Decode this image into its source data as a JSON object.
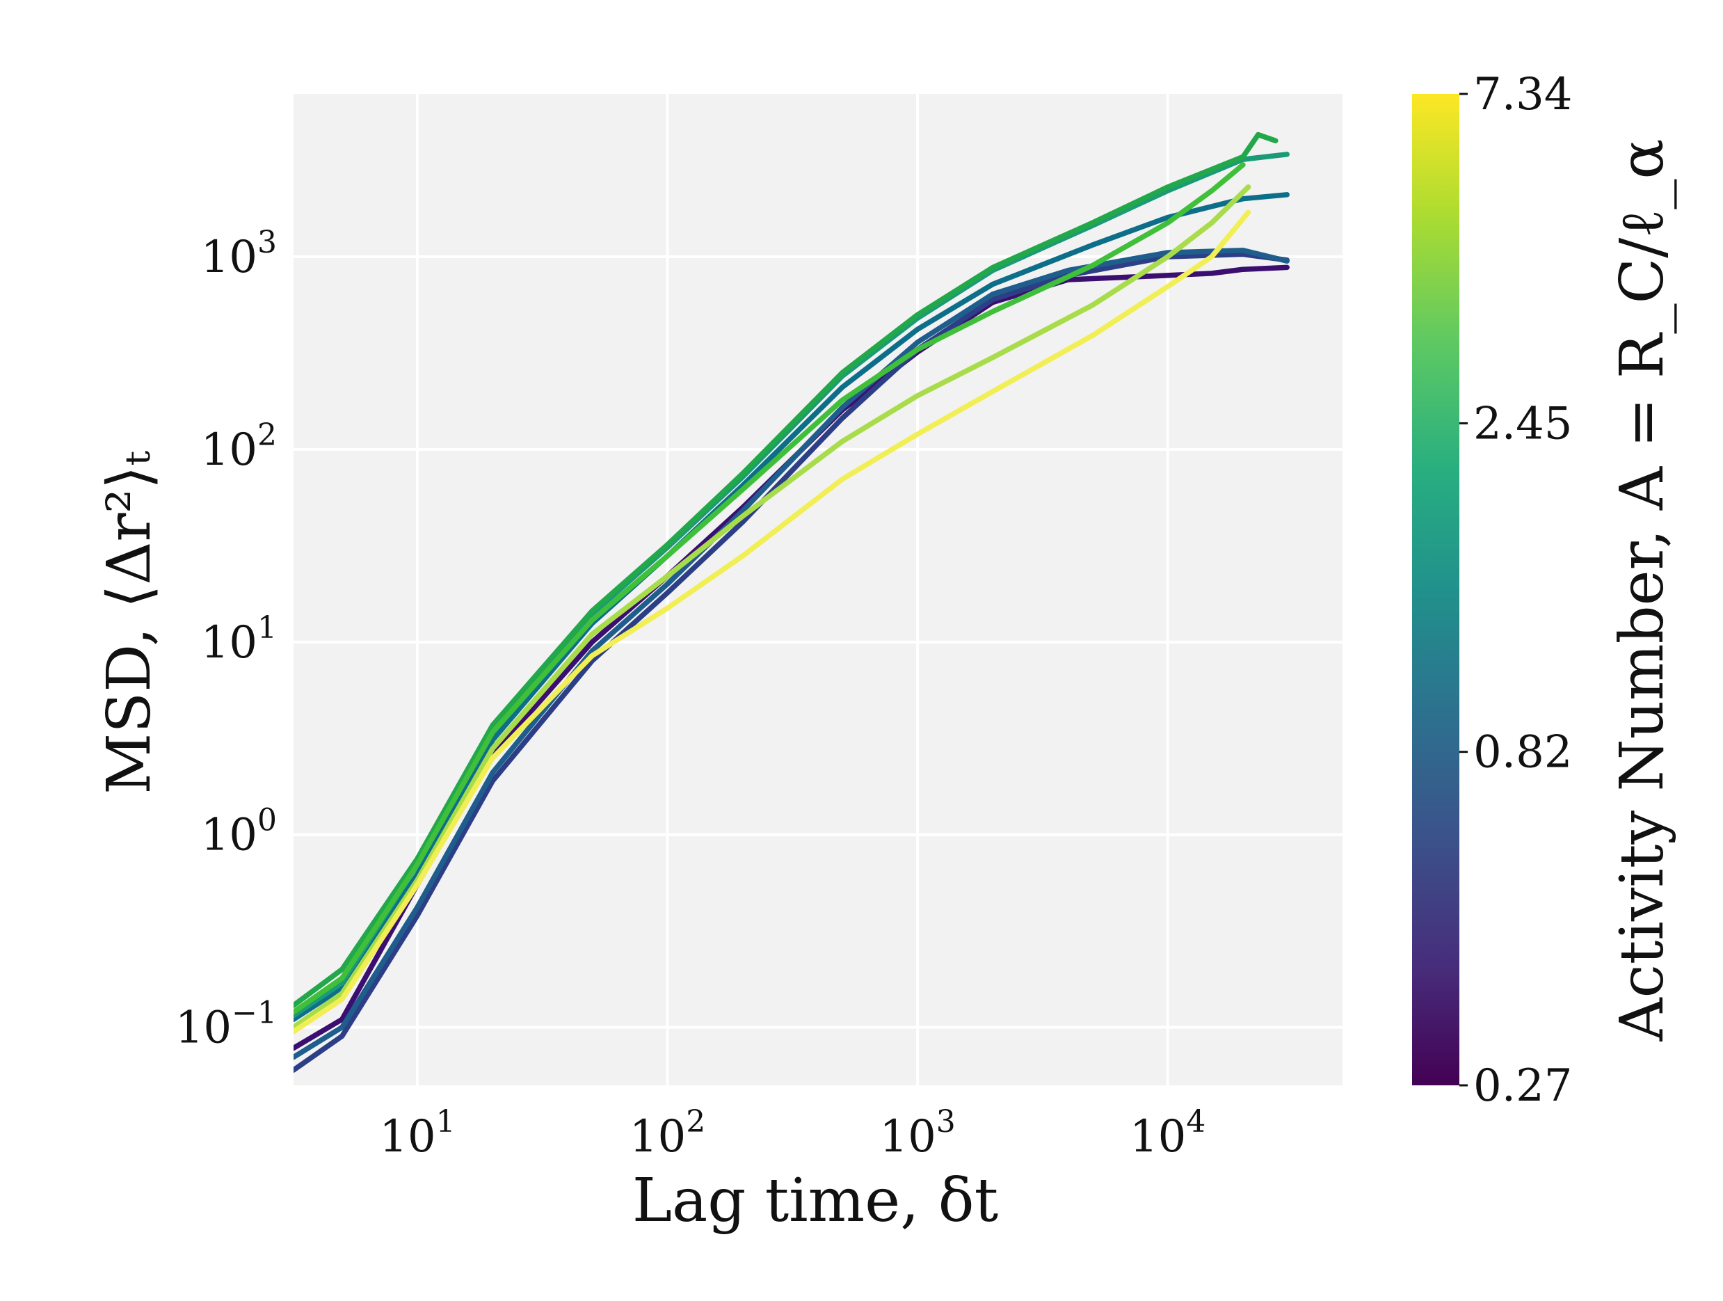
{
  "chart_data": {
    "type": "line",
    "xscale": "log",
    "yscale": "log",
    "xlabel": "Lag time, δt",
    "ylabel": "MSD, ⟨Δr²⟩ₜ",
    "xlim": [
      3.2,
      50000
    ],
    "ylim": [
      0.05,
      7000
    ],
    "x_ticks": [
      {
        "value": 10,
        "base": "10",
        "exp": "1"
      },
      {
        "value": 100,
        "base": "10",
        "exp": "2"
      },
      {
        "value": 1000,
        "base": "10",
        "exp": "3"
      },
      {
        "value": 10000,
        "base": "10",
        "exp": "4"
      }
    ],
    "y_ticks": [
      {
        "value": 0.1,
        "base": "10",
        "exp": "−1"
      },
      {
        "value": 1,
        "base": "10",
        "exp": "0"
      },
      {
        "value": 10,
        "base": "10",
        "exp": "1"
      },
      {
        "value": 100,
        "base": "10",
        "exp": "2"
      },
      {
        "value": 1000,
        "base": "10",
        "exp": "3"
      }
    ],
    "grid": true,
    "plot_background": "#f2f2f2",
    "colorbar": {
      "label": "Activity Number, A = R_C/ℓ_α",
      "colormap": "viridis",
      "scale": "log",
      "range": [
        0.27,
        7.34
      ],
      "ticks": [
        "0.27",
        "0.82",
        "2.45",
        "7.34"
      ],
      "tick_values": [
        0.27,
        0.82,
        2.45,
        7.34
      ]
    },
    "series": [
      {
        "color": "#3b0f70",
        "points": [
          [
            3.2,
            0.078
          ],
          [
            5,
            0.11
          ],
          [
            10,
            0.55
          ],
          [
            20,
            2.6
          ],
          [
            50,
            10
          ],
          [
            100,
            22
          ],
          [
            200,
            50
          ],
          [
            500,
            160
          ],
          [
            1000,
            320
          ],
          [
            2000,
            580
          ],
          [
            4000,
            760
          ],
          [
            8000,
            790
          ],
          [
            15000,
            820
          ],
          [
            20000,
            860
          ],
          [
            30000,
            880
          ]
        ]
      },
      {
        "color": "#2c3e85",
        "points": [
          [
            3.2,
            0.06
          ],
          [
            5,
            0.09
          ],
          [
            10,
            0.38
          ],
          [
            20,
            1.9
          ],
          [
            50,
            8
          ],
          [
            100,
            18
          ],
          [
            200,
            42
          ],
          [
            500,
            145
          ],
          [
            1000,
            330
          ],
          [
            2000,
            600
          ],
          [
            4000,
            800
          ],
          [
            10000,
            1000
          ],
          [
            20000,
            1030
          ],
          [
            30000,
            960
          ]
        ]
      },
      {
        "color": "#1f5e8c",
        "points": [
          [
            3.2,
            0.07
          ],
          [
            5,
            0.1
          ],
          [
            10,
            0.42
          ],
          [
            20,
            2.1
          ],
          [
            50,
            9
          ],
          [
            100,
            20
          ],
          [
            200,
            48
          ],
          [
            500,
            165
          ],
          [
            1000,
            360
          ],
          [
            2000,
            640
          ],
          [
            4000,
            850
          ],
          [
            10000,
            1050
          ],
          [
            20000,
            1080
          ],
          [
            30000,
            950
          ]
        ]
      },
      {
        "color": "#0d6e8a",
        "points": [
          [
            3.2,
            0.11
          ],
          [
            5,
            0.16
          ],
          [
            10,
            0.62
          ],
          [
            20,
            3.1
          ],
          [
            50,
            12.5
          ],
          [
            100,
            28
          ],
          [
            200,
            65
          ],
          [
            500,
            210
          ],
          [
            1000,
            420
          ],
          [
            2000,
            720
          ],
          [
            5000,
            1150
          ],
          [
            10000,
            1600
          ],
          [
            20000,
            2000
          ],
          [
            30000,
            2100
          ]
        ]
      },
      {
        "color": "#1a9a78",
        "points": [
          [
            3.2,
            0.115
          ],
          [
            5,
            0.17
          ],
          [
            10,
            0.7
          ],
          [
            20,
            3.5
          ],
          [
            50,
            14
          ],
          [
            100,
            31
          ],
          [
            200,
            72
          ],
          [
            500,
            240
          ],
          [
            1000,
            480
          ],
          [
            2000,
            850
          ],
          [
            5000,
            1450
          ],
          [
            10000,
            2200
          ],
          [
            20000,
            3200
          ],
          [
            30000,
            3400
          ]
        ]
      },
      {
        "color": "#22a84a",
        "points": [
          [
            3.2,
            0.13
          ],
          [
            5,
            0.2
          ],
          [
            10,
            0.75
          ],
          [
            20,
            3.7
          ],
          [
            50,
            14.5
          ],
          [
            100,
            32
          ],
          [
            200,
            75
          ],
          [
            500,
            250
          ],
          [
            1000,
            500
          ],
          [
            2000,
            880
          ],
          [
            5000,
            1500
          ],
          [
            10000,
            2300
          ],
          [
            20000,
            3300
          ],
          [
            23000,
            4300
          ],
          [
            27000,
            4000
          ]
        ]
      },
      {
        "color": "#40bf3a",
        "points": [
          [
            3.2,
            0.12
          ],
          [
            5,
            0.18
          ],
          [
            10,
            0.7
          ],
          [
            20,
            3.4
          ],
          [
            50,
            13
          ],
          [
            100,
            28
          ],
          [
            200,
            62
          ],
          [
            500,
            180
          ],
          [
            1000,
            330
          ],
          [
            2000,
            520
          ],
          [
            5000,
            900
          ],
          [
            10000,
            1500
          ],
          [
            15000,
            2200
          ],
          [
            20000,
            3000
          ]
        ]
      },
      {
        "color": "#a8dc4a",
        "points": [
          [
            3.2,
            0.1
          ],
          [
            5,
            0.15
          ],
          [
            10,
            0.58
          ],
          [
            20,
            2.8
          ],
          [
            50,
            11
          ],
          [
            100,
            22
          ],
          [
            200,
            45
          ],
          [
            500,
            110
          ],
          [
            1000,
            190
          ],
          [
            2000,
            300
          ],
          [
            5000,
            560
          ],
          [
            10000,
            1000
          ],
          [
            15000,
            1500
          ],
          [
            21000,
            2300
          ]
        ]
      },
      {
        "color": "#f1ef55",
        "points": [
          [
            3.2,
            0.095
          ],
          [
            5,
            0.14
          ],
          [
            10,
            0.55
          ],
          [
            20,
            2.5
          ],
          [
            50,
            8.5
          ],
          [
            100,
            15
          ],
          [
            200,
            28
          ],
          [
            500,
            70
          ],
          [
            1000,
            120
          ],
          [
            2000,
            200
          ],
          [
            5000,
            390
          ],
          [
            10000,
            700
          ],
          [
            15000,
            1000
          ],
          [
            21000,
            1700
          ]
        ]
      }
    ]
  }
}
